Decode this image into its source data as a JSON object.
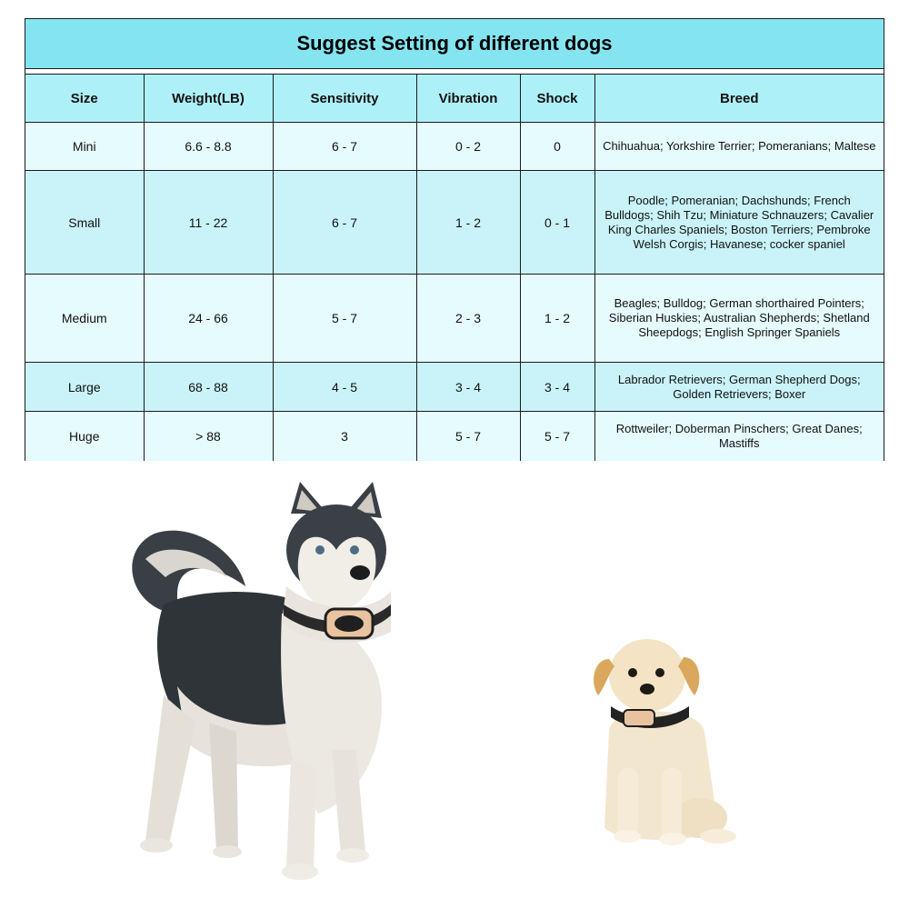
{
  "table": {
    "title": "Suggest Setting of different dogs",
    "headers": [
      "Size",
      "Weight(LB)",
      "Sensitivity",
      "Vibration",
      "Shock",
      "Breed"
    ],
    "rows": [
      {
        "size": "Mini",
        "weight": "6.6 - 8.8",
        "sensitivity": "6 - 7",
        "vibration": "0 - 2",
        "shock": "0",
        "breed": "Chihuahua; Yorkshire Terrier; Pomeranians; Maltese"
      },
      {
        "size": "Small",
        "weight": "11 - 22",
        "sensitivity": "6 - 7",
        "vibration": "1 - 2",
        "shock": "0 - 1",
        "breed": "Poodle; Pomeranian; Dachshunds; French Bulldogs; Shih Tzu; Miniature Schnauzers; Cavalier King Charles Spaniels; Boston Terriers; Pembroke Welsh Corgis; Havanese; cocker spaniel"
      },
      {
        "size": "Medium",
        "weight": "24 - 66",
        "sensitivity": "5 - 7",
        "vibration": "2 - 3",
        "shock": "1 - 2",
        "breed": "Beagles; Bulldog; German shorthaired Pointers; Siberian Huskies; Australian Shepherds; Shetland Sheepdogs; English Springer Spaniels"
      },
      {
        "size": "Large",
        "weight": "68 - 88",
        "sensitivity": "4 - 5",
        "vibration": "3 - 4",
        "shock": "3 - 4",
        "breed": "Labrador Retrievers; German Shepherd Dogs; Golden Retrievers; Boxer"
      },
      {
        "size": "Huge",
        "weight": "> 88",
        "sensitivity": "3",
        "vibration": "5 - 7",
        "shock": "5 - 7",
        "breed": "Rottweiler; Doberman Pinschers; Great Danes; Mastiffs"
      }
    ]
  },
  "colors": {
    "title_bg": "#84e5f1",
    "header_bg": "#aef0f7",
    "row_light": "#e6fbfd",
    "row_dark": "#c9f3f8",
    "collar_accent": "#e9c3a0"
  },
  "images": {
    "large_dog": "husky-with-collar",
    "small_dog": "golden-puppy-with-collar"
  }
}
